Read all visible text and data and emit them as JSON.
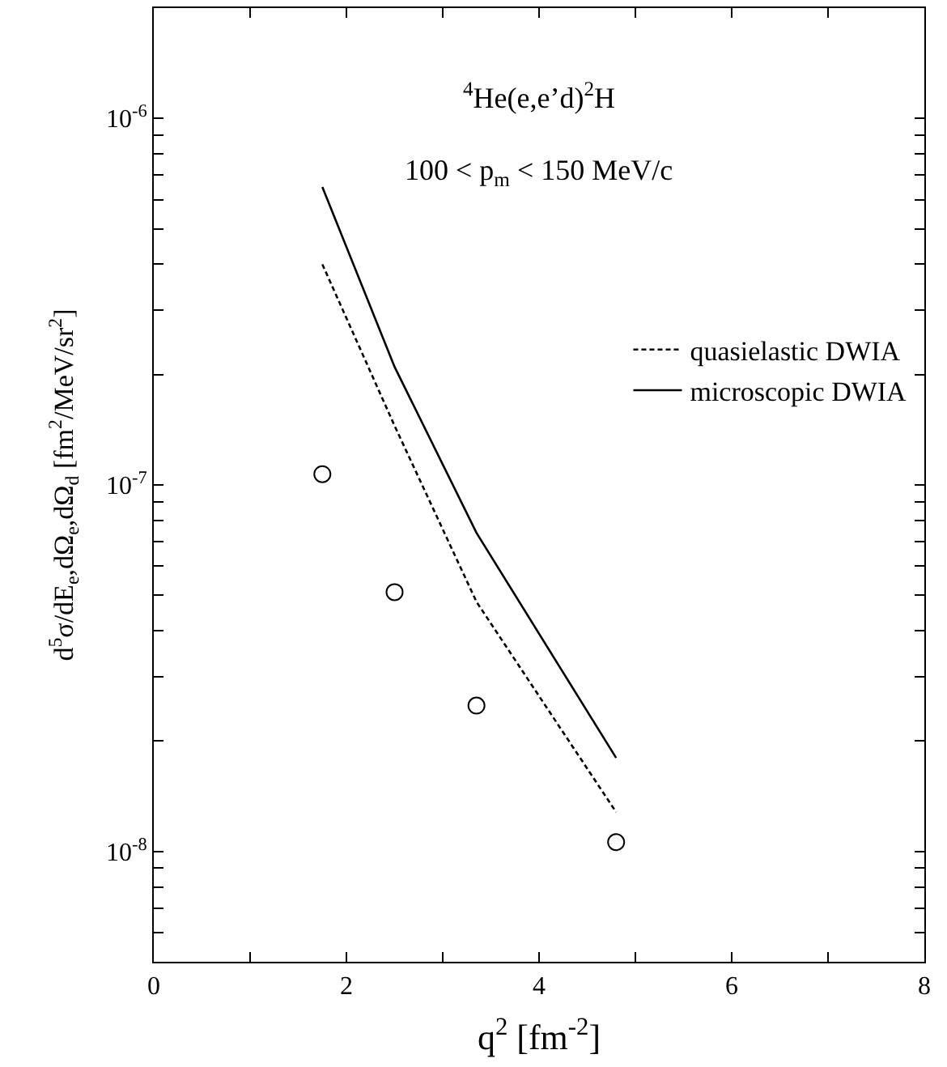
{
  "chart_data": {
    "type": "line",
    "xlabel": "q$^{2}$ [fm$^{-2}$]",
    "ylabel": "d$^{5}$σ/dE$_{e}$,dΩ$_{e}$,dΩ$_{d}$ [fm$^{2}$/MeV/sr$^{2}$]",
    "annotations": [
      "$^{4}$He(e,e’d)$^{2}$H",
      "100 < p$_{m}$ < 150 MeV/c"
    ],
    "log": "y",
    "legend": "right",
    "xlim": [
      0,
      8
    ],
    "xticks": [
      0,
      {
        "value": 1,
        "label": null
      },
      2,
      {
        "value": 3,
        "label": null
      },
      4,
      {
        "value": 5,
        "label": null
      },
      6,
      {
        "value": 7,
        "label": null
      },
      8
    ],
    "ylim": [
      5e-09,
      2e-06
    ],
    "yticks": [
      {
        "value": 6e-09,
        "label": null
      },
      {
        "value": 7e-09,
        "label": null
      },
      {
        "value": 8e-09,
        "label": null
      },
      {
        "value": 9e-09,
        "label": null
      },
      {
        "value": 1e-08,
        "label": "10$^{-8}$"
      },
      {
        "value": 2e-08,
        "label": null
      },
      {
        "value": 3e-08,
        "label": null
      },
      {
        "value": 4e-08,
        "label": null
      },
      {
        "value": 5e-08,
        "label": null
      },
      {
        "value": 6e-08,
        "label": null
      },
      {
        "value": 7e-08,
        "label": null
      },
      {
        "value": 8e-08,
        "label": null
      },
      {
        "value": 9e-08,
        "label": null
      },
      {
        "value": 1e-07,
        "label": "10$^{-7}$"
      },
      {
        "value": 2e-07,
        "label": null
      },
      {
        "value": 3e-07,
        "label": null
      },
      {
        "value": 4e-07,
        "label": null
      },
      {
        "value": 5e-07,
        "label": null
      },
      {
        "value": 6e-07,
        "label": null
      },
      {
        "value": 7e-07,
        "label": null
      },
      {
        "value": 8e-07,
        "label": null
      },
      {
        "value": 9e-07,
        "label": null
      },
      {
        "value": 1e-06,
        "label": "10$^{-6}$"
      },
      {
        "value": 2e-06,
        "label": null
      }
    ],
    "series": [
      {
        "type": "scatter",
        "color": "#000000",
        "marker": "circle",
        "x": [
          1.75,
          2.5,
          3.35,
          4.8
        ],
        "values": [
          1.07e-07,
          5.1e-08,
          2.5e-08,
          1.06e-08
        ]
      },
      {
        "name": "quasielastic DWIA",
        "color": "#000000",
        "line_style": "dashed",
        "x": [
          1.75,
          2.5,
          3.35,
          4.8
        ],
        "values": [
          4e-07,
          1.45e-07,
          4.8e-08,
          1.28e-08
        ]
      },
      {
        "name": "microscopic DWIA",
        "color": "#000000",
        "line_style": "solid",
        "x": [
          1.75,
          2.5,
          3.35,
          4.8
        ],
        "values": [
          6.5e-07,
          2.1e-07,
          7.4e-08,
          1.8e-08
        ]
      }
    ]
  }
}
